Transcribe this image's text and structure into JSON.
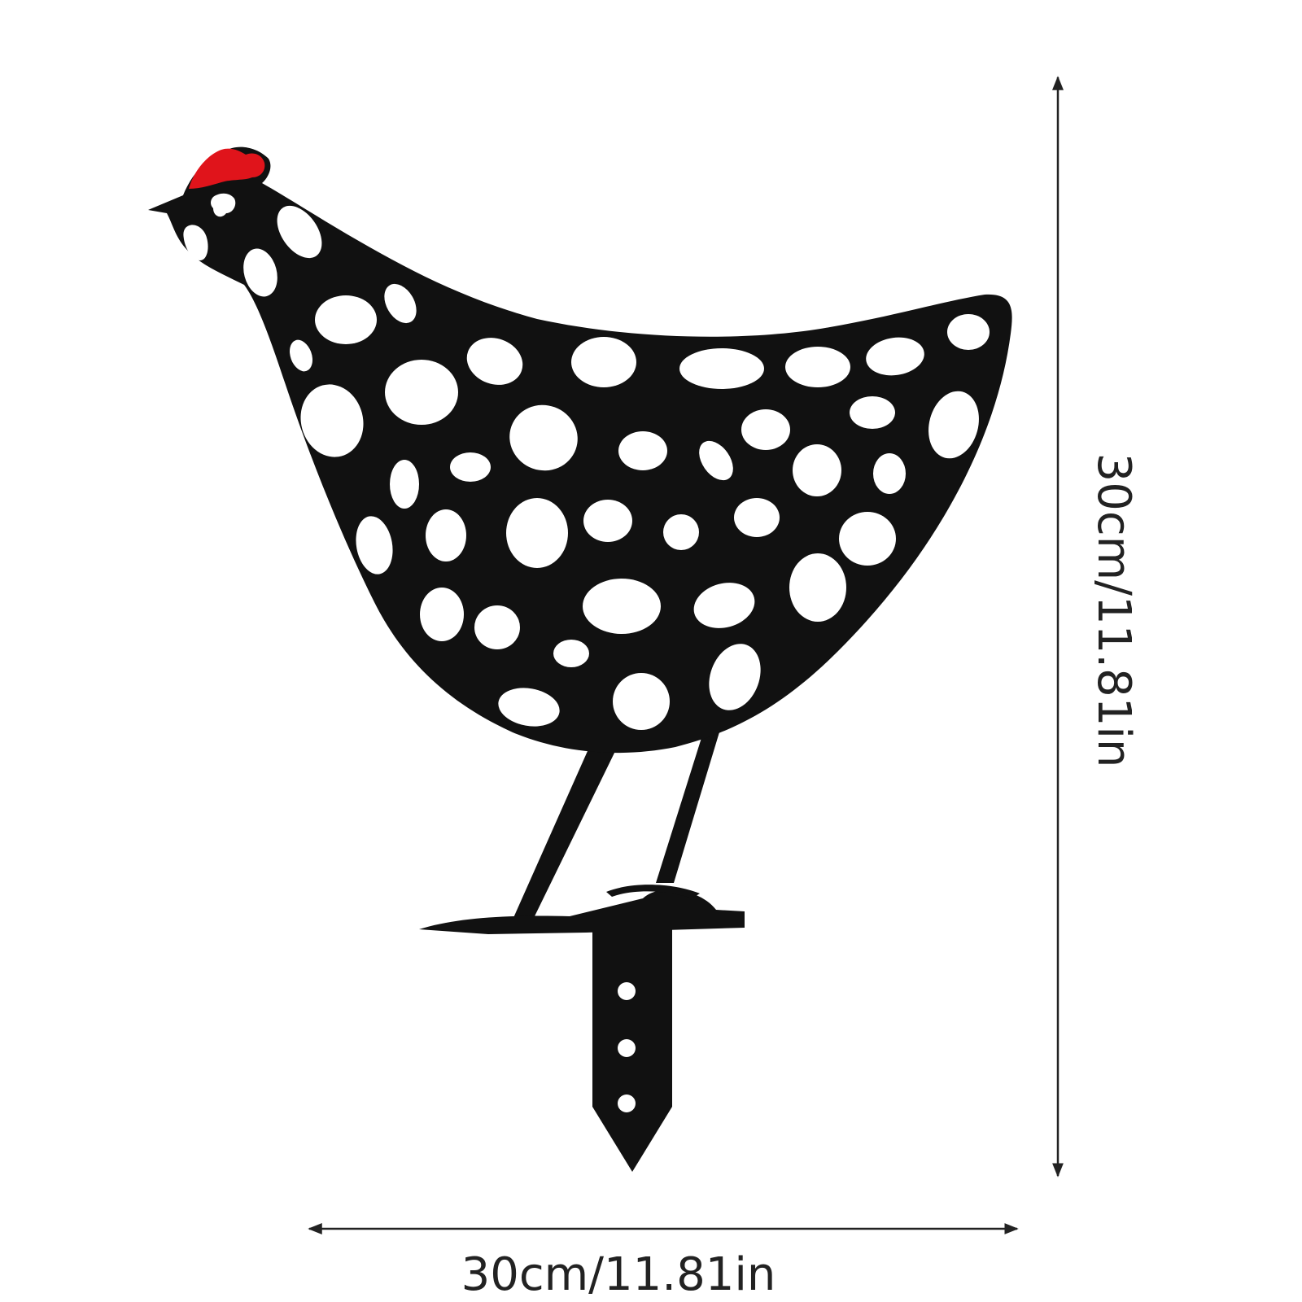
{
  "dimensions": {
    "width_label": "30cm/11.81in",
    "height_label": "30cm/11.81in"
  },
  "colors": {
    "silhouette": "#111111",
    "comb": "#e0141b",
    "background": "#ffffff",
    "dimension_line": "#222222"
  },
  "subject": {
    "icon": "spotted-chicken-stake-icon"
  }
}
